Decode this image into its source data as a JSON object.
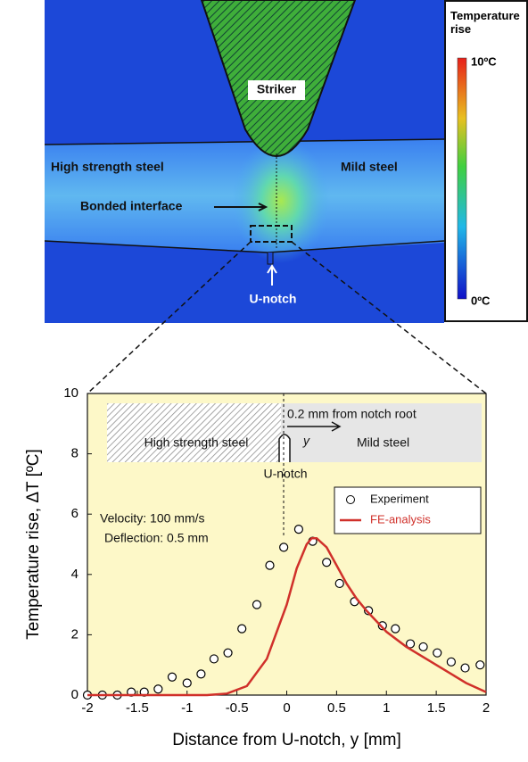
{
  "figure": {
    "striker": "Striker",
    "left_material": "High strength steel",
    "right_material": "Mild steel",
    "interface": "Bonded interface",
    "notch": "U-notch",
    "legend_title": "Temperature rise",
    "scale_max": "10ºC",
    "scale_min": "0ºC"
  },
  "chart_data": {
    "type": "scatter",
    "xlabel": "Distance from U-notch, y [mm]",
    "ylabel": "Temperature rise, ΔT [ºC]",
    "xlim": [
      -2,
      2
    ],
    "ylim": [
      0,
      10
    ],
    "xticks": [
      -2,
      -1.5,
      -1,
      -0.5,
      0,
      0.5,
      1,
      1.5,
      2
    ],
    "yticks": [
      0,
      2,
      4,
      6,
      8,
      10
    ],
    "legend": "upper right",
    "background": "#fdf8c8",
    "annotations": [
      "High strength steel",
      "y",
      "0.2 mm from notch root",
      "Mild steel",
      "U-notch",
      "Velocity: 100 mm/s",
      "Deflection: 0.5 mm"
    ],
    "series": [
      {
        "name": "Experiment",
        "kind": "scatter",
        "color": "#000000",
        "x": [
          -2,
          -1.85,
          -1.7,
          -1.56,
          -1.43,
          -1.29,
          -1.15,
          -1.0,
          -0.86,
          -0.73,
          -0.59,
          -0.45,
          -0.3,
          -0.17,
          -0.03,
          0.12,
          0.26,
          0.4,
          0.53,
          0.68,
          0.82,
          0.96,
          1.09,
          1.24,
          1.37,
          1.51,
          1.65,
          1.79,
          1.94
        ],
        "values": [
          0,
          0,
          0,
          0.1,
          0.1,
          0.2,
          0.6,
          0.4,
          0.7,
          1.2,
          1.4,
          2.2,
          3.0,
          4.3,
          4.9,
          5.5,
          5.1,
          4.4,
          3.7,
          3.1,
          2.8,
          2.3,
          2.2,
          1.7,
          1.6,
          1.4,
          1.1,
          0.9,
          1.0
        ]
      },
      {
        "name": "FE-analysis",
        "kind": "line",
        "color": "#d0302a",
        "x": [
          -2,
          -1.2,
          -0.8,
          -0.6,
          -0.4,
          -0.2,
          0,
          0.1,
          0.2,
          0.25,
          0.3,
          0.4,
          0.5,
          0.6,
          0.7,
          0.8,
          1.0,
          1.2,
          1.4,
          1.6,
          1.8,
          2.0
        ],
        "values": [
          0,
          0,
          0,
          0.05,
          0.3,
          1.2,
          3.0,
          4.2,
          5.0,
          5.2,
          5.2,
          4.9,
          4.3,
          3.7,
          3.2,
          2.8,
          2.1,
          1.6,
          1.2,
          0.8,
          0.4,
          0.1
        ]
      }
    ]
  }
}
